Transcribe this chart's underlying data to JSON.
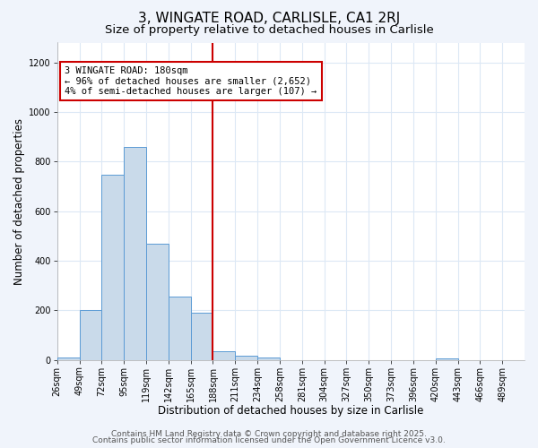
{
  "title": "3, WINGATE ROAD, CARLISLE, CA1 2RJ",
  "subtitle": "Size of property relative to detached houses in Carlisle",
  "xlabel": "Distribution of detached houses by size in Carlisle",
  "ylabel": "Number of detached properties",
  "bar_labels": [
    "26sqm",
    "49sqm",
    "72sqm",
    "95sqm",
    "119sqm",
    "142sqm",
    "165sqm",
    "188sqm",
    "211sqm",
    "234sqm",
    "258sqm",
    "281sqm",
    "304sqm",
    "327sqm",
    "350sqm",
    "373sqm",
    "396sqm",
    "420sqm",
    "443sqm",
    "466sqm",
    "489sqm"
  ],
  "bar_values": [
    10,
    200,
    745,
    860,
    470,
    255,
    190,
    35,
    18,
    10,
    0,
    0,
    0,
    0,
    0,
    0,
    0,
    5,
    0,
    0,
    0
  ],
  "bar_color": "#c9daea",
  "bar_edge_color": "#5b9bd5",
  "vline_x_index": 7,
  "vline_color": "#cc0000",
  "annotation_line1": "3 WINGATE ROAD: 180sqm",
  "annotation_line2": "← 96% of detached houses are smaller (2,652)",
  "annotation_line3": "4% of semi-detached houses are larger (107) →",
  "annotation_box_facecolor": "#ffffff",
  "annotation_box_edgecolor": "#cc0000",
  "ylim": [
    0,
    1280
  ],
  "yticks": [
    0,
    200,
    400,
    600,
    800,
    1000,
    1200
  ],
  "footer1": "Contains HM Land Registry data © Crown copyright and database right 2025.",
  "footer2": "Contains public sector information licensed under the Open Government Licence v3.0.",
  "plot_bg_color": "#ffffff",
  "fig_bg_color": "#f0f4fb",
  "grid_color": "#dce8f5",
  "title_fontsize": 11,
  "subtitle_fontsize": 9.5,
  "axis_label_fontsize": 8.5,
  "tick_fontsize": 7,
  "annotation_fontsize": 7.5,
  "footer_fontsize": 6.5
}
